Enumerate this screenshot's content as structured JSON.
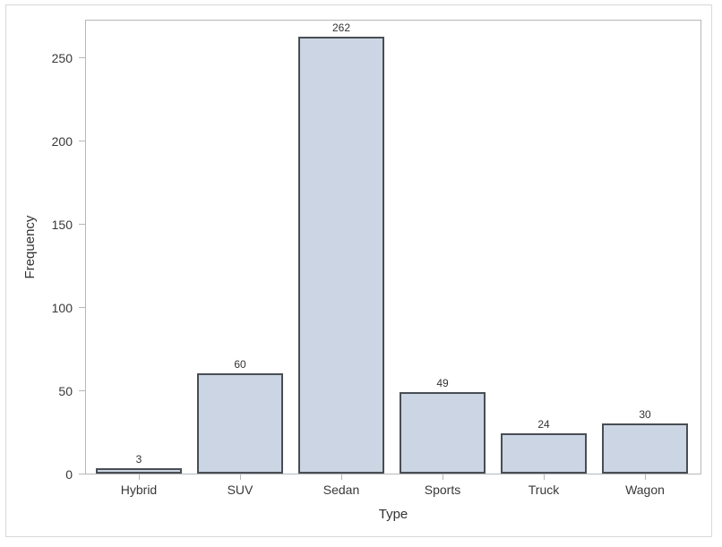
{
  "chart_data": {
    "type": "bar",
    "title": "",
    "categories": [
      "Hybrid",
      "SUV",
      "Sedan",
      "Sports",
      "Truck",
      "Wagon"
    ],
    "values": [
      3,
      60,
      262,
      49,
      24,
      30
    ],
    "xlabel": "Type",
    "ylabel": "Frequency",
    "yticks": [
      0,
      50,
      100,
      150,
      200,
      250
    ],
    "ylim": [
      0,
      273
    ],
    "grid": false,
    "legend": "none",
    "bar_fill": "#cbd5e3",
    "bar_border": "#494e54",
    "axis_color": "#b4b7bb",
    "text_color": "#383838",
    "value_label_color": "#333333",
    "frame_border_color": "#d9d9d9",
    "background": "#ffffff"
  }
}
